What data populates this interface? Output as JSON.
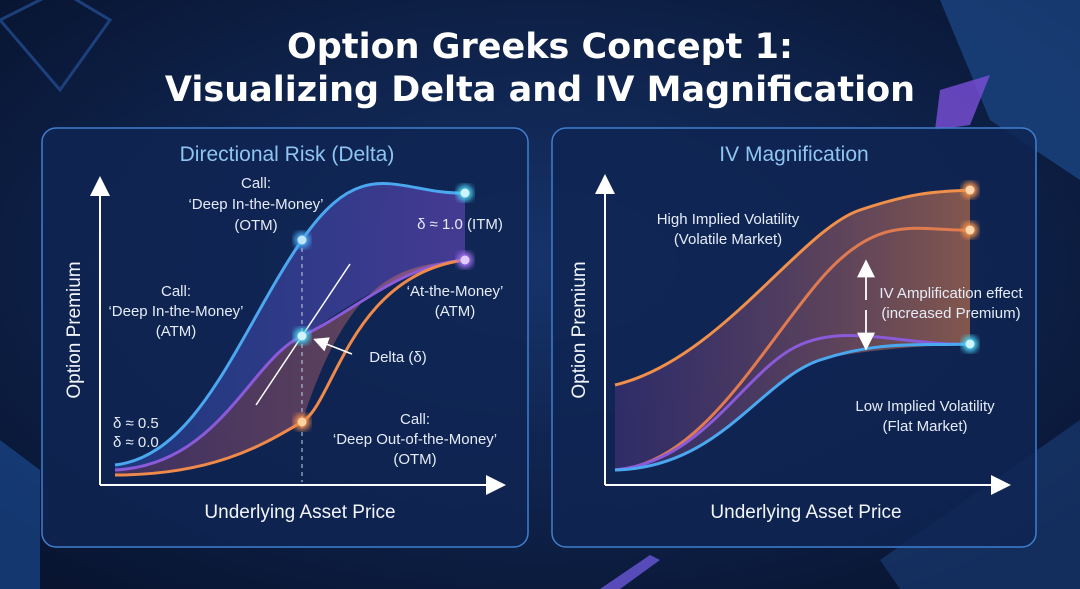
{
  "header": {
    "title_lines": [
      "Option Greeks Concept 1:",
      "Visualizing Delta and IV Magnification"
    ]
  },
  "panels": [
    {
      "title": "Directional Risk (Delta)",
      "y_axis_label": "Option Premium",
      "x_axis_label": "Underlying Asset Price",
      "annotations": [
        {
          "lines": [
            "Call:",
            "‘Deep In-the-Money’",
            "(OTM)"
          ]
        },
        {
          "lines": [
            "δ ≈ 1.0 (ITM)"
          ]
        },
        {
          "lines": [
            "Call:",
            "‘Deep In-the-Money’",
            "(ATM)"
          ]
        },
        {
          "lines": [
            "‘At-the-Money’",
            "(ATM)"
          ]
        },
        {
          "lines": [
            "Delta (δ)"
          ]
        },
        {
          "lines": [
            "δ ≈ 0.5",
            "δ ≈ 0.0"
          ]
        },
        {
          "lines": [
            "Call:",
            "‘Deep Out-of-the-Money’",
            "(OTM)"
          ]
        }
      ]
    },
    {
      "title": "IV Magnification",
      "y_axis_label": "Option Premium",
      "x_axis_label": "Underlying Asset Price",
      "annotations": [
        {
          "lines": [
            "High Implied Volatility",
            "(Volatile Market)"
          ]
        },
        {
          "lines": [
            "IV Amplification effect",
            "(increased Premium)"
          ]
        },
        {
          "lines": [
            "Low Implied Volatility",
            "(Flat Market)"
          ]
        }
      ]
    }
  ]
}
